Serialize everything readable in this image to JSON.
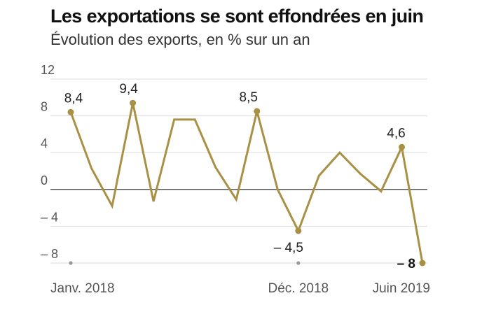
{
  "title": "Les exportations se sont effondrées en juin",
  "subtitle": "Évolution des exports, en % sur un an",
  "chart_data": {
    "type": "line",
    "title": "Les exportations se sont effondrées en juin",
    "subtitle": "Évolution des exports, en % sur un an",
    "ylim": [
      -8,
      12
    ],
    "yticks": [
      12,
      8,
      4,
      0,
      -4,
      -8
    ],
    "ytick_labels": [
      "12",
      "8",
      "4",
      "0",
      "– 4",
      "– 8"
    ],
    "x": [
      "2018-01",
      "2018-02",
      "2018-03",
      "2018-04",
      "2018-05",
      "2018-06",
      "2018-07",
      "2018-08",
      "2018-09",
      "2018-10",
      "2018-11",
      "2018-12",
      "2019-01",
      "2019-02",
      "2019-03",
      "2019-04",
      "2019-05",
      "2019-06"
    ],
    "xtick_labels": [
      {
        "index": 0,
        "label": "Janv. 2018"
      },
      {
        "index": 11,
        "label": "Déc. 2018"
      },
      {
        "index": 17,
        "label": "Juin 2019"
      }
    ],
    "series": [
      {
        "color": "#a89045",
        "values": [
          8.4,
          2.3,
          -1.8,
          9.4,
          -1.3,
          7.6,
          7.6,
          2.4,
          -1.1,
          8.5,
          0.0,
          -4.5,
          1.5,
          4.0,
          1.7,
          -0.2,
          4.6,
          -8.0
        ]
      }
    ],
    "annotations": [
      {
        "index": 0,
        "label": "8,4"
      },
      {
        "index": 3,
        "label": "9,4"
      },
      {
        "index": 9,
        "label": "8,5"
      },
      {
        "index": 11,
        "label": "– 4,5"
      },
      {
        "index": 16,
        "label": "4,6"
      },
      {
        "index": 17,
        "label": "– 8"
      }
    ],
    "grid": true,
    "zero_line": true
  },
  "colors": {
    "line": "#a89045",
    "grid": "#dddddd",
    "zero": "#222222",
    "marker": "#999999"
  }
}
